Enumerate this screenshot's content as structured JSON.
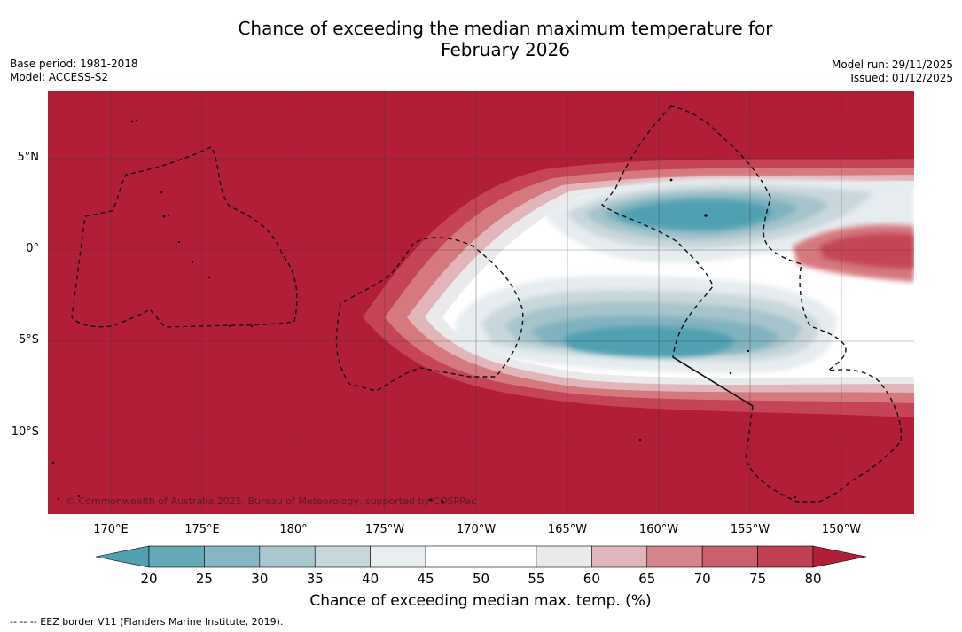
{
  "header": {
    "title_line1": "Chance of exceeding the median maximum temperature for",
    "title_line2": "February 2026",
    "base_period": "Base period: 1981-2018",
    "model": "Model: ACCESS-S2",
    "model_run": "Model run: 29/11/2025",
    "issued": "Issued: 01/12/2025"
  },
  "map": {
    "lat_labels": [
      "5°N",
      "0°",
      "5°S",
      "10°S"
    ],
    "lon_labels": [
      "170°E",
      "175°E",
      "180°",
      "175°W",
      "170°W",
      "165°W",
      "160°W",
      "155°W",
      "150°W"
    ],
    "copyright": "© Commonwealth of Australia 2025, Bureau of Meteorology, supported by COSPPac",
    "colors": {
      "c80plus": "#b21e38",
      "c75": "#c54458",
      "c70": "#d5797f",
      "c65": "#e2b5ba",
      "c55": "#ebeaeb",
      "c50": "#ffffff",
      "c40": "#e6ecef",
      "c35": "#c9d7dc",
      "c30": "#a6c4cb",
      "c25": "#80b3bf",
      "c20": "#50a0b2"
    }
  },
  "colorbar": {
    "ticks": [
      "20",
      "25",
      "30",
      "35",
      "40",
      "45",
      "50",
      "55",
      "60",
      "65",
      "70",
      "75",
      "80"
    ],
    "colors": [
      "#65a8b6",
      "#86b6c1",
      "#a9c8ce",
      "#c8d7dc",
      "#e9eef1",
      "#ffffff",
      "#ffffff",
      "#ebeaeb",
      "#e0b6ba",
      "#d5858b",
      "#c9606b",
      "#bf4050"
    ],
    "low_color": "#50a0b2",
    "high_color": "#b21e38",
    "label": "Chance of exceeding median max. temp. (%)"
  },
  "footer": {
    "legend": "--  --  -- EEZ border V11 (Flanders Marine Institute, 2019)."
  }
}
